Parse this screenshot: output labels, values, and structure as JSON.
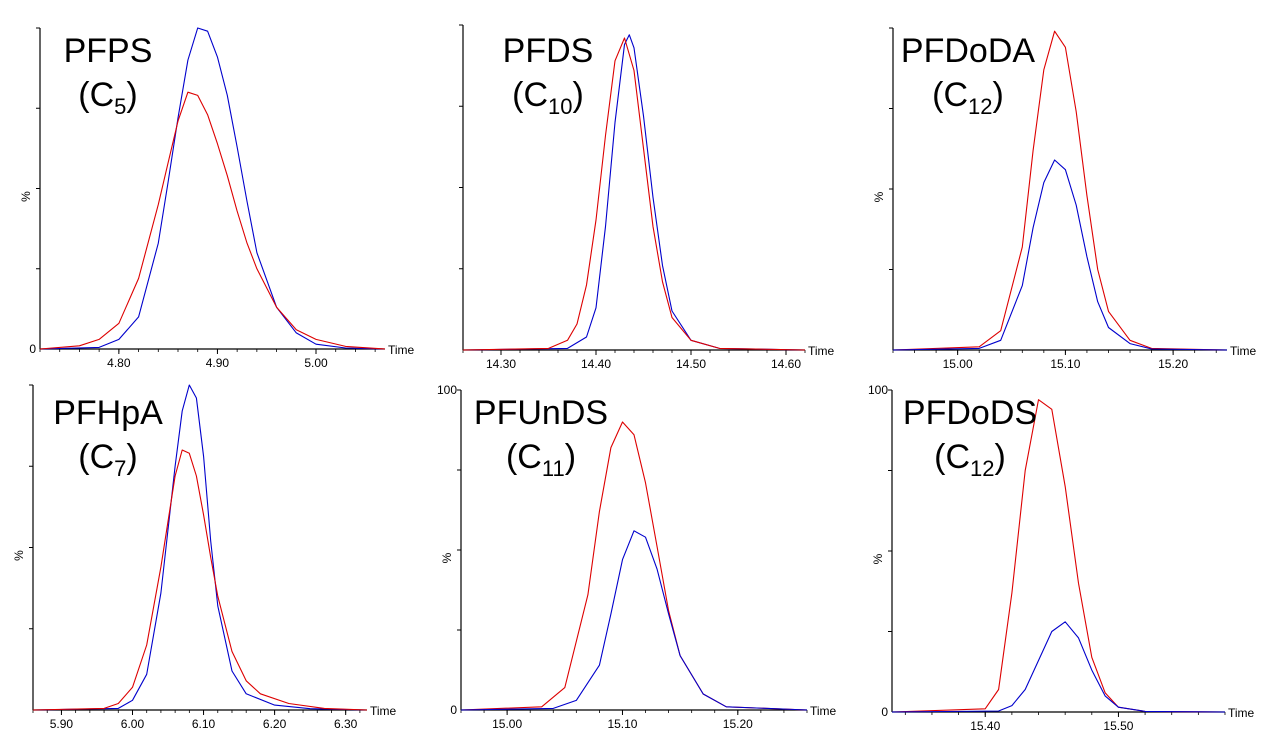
{
  "chart_data": [
    {
      "type": "line",
      "title": "PFPS",
      "carbon": "5",
      "xlabel": "Time",
      "ylabel": "%",
      "xlim": [
        4.72,
        5.07
      ],
      "ylim": [
        0,
        100
      ],
      "x_ticks": [
        "4.80",
        "4.90",
        "5.00"
      ],
      "x_tick_values": [
        4.8,
        4.9,
        5.0
      ],
      "y_tick_labels": [
        {
          "value": 0,
          "label": "0"
        }
      ],
      "series": [
        {
          "color": "#0000cc",
          "x": [
            4.72,
            4.78,
            4.8,
            4.82,
            4.84,
            4.85,
            4.86,
            4.87,
            4.88,
            4.89,
            4.9,
            4.91,
            4.92,
            4.93,
            4.94,
            4.96,
            4.98,
            5.0,
            5.03,
            5.07
          ],
          "y": [
            0,
            0.5,
            3,
            10,
            33,
            52,
            72,
            90,
            100,
            99,
            91,
            79,
            63,
            46,
            30,
            13,
            5,
            1.5,
            0.3,
            0
          ]
        },
        {
          "color": "#dd0000",
          "x": [
            4.72,
            4.76,
            4.78,
            4.8,
            4.82,
            4.84,
            4.85,
            4.86,
            4.87,
            4.88,
            4.89,
            4.9,
            4.91,
            4.92,
            4.93,
            4.94,
            4.96,
            4.98,
            5.0,
            5.03,
            5.07
          ],
          "y": [
            0,
            1,
            3,
            8,
            22,
            45,
            58,
            71,
            80,
            79,
            73,
            64,
            54,
            43,
            33,
            25,
            13,
            6,
            3,
            0.8,
            0
          ]
        }
      ]
    },
    {
      "type": "line",
      "title": "PFDS",
      "carbon": "10",
      "xlabel": "Time",
      "ylabel": "",
      "xlim": [
        14.26,
        14.62
      ],
      "ylim": [
        0,
        100
      ],
      "x_ticks": [
        "14.30",
        "14.40",
        "14.50",
        "14.60"
      ],
      "x_tick_values": [
        14.3,
        14.4,
        14.5,
        14.6
      ],
      "y_tick_labels": [],
      "series": [
        {
          "color": "#0000cc",
          "x": [
            14.26,
            14.37,
            14.39,
            14.4,
            14.41,
            14.42,
            14.43,
            14.435,
            14.44,
            14.45,
            14.46,
            14.47,
            14.48,
            14.5,
            14.53,
            14.62
          ],
          "y": [
            0,
            0.5,
            4,
            13,
            38,
            70,
            94,
            97,
            93,
            72,
            47,
            26,
            12,
            3,
            0.5,
            0
          ]
        },
        {
          "color": "#dd0000",
          "x": [
            14.26,
            14.35,
            14.37,
            14.38,
            14.39,
            14.4,
            14.41,
            14.42,
            14.43,
            14.44,
            14.45,
            14.46,
            14.47,
            14.48,
            14.5,
            14.53,
            14.62
          ],
          "y": [
            0,
            0.5,
            3,
            8,
            20,
            40,
            66,
            89,
            96,
            86,
            62,
            38,
            21,
            10,
            3,
            0.5,
            0
          ]
        }
      ]
    },
    {
      "type": "line",
      "title": "PFDoDA",
      "carbon": "12",
      "xlabel": "Time",
      "ylabel": "%",
      "xlim": [
        14.94,
        15.25
      ],
      "ylim": [
        0,
        100
      ],
      "x_ticks": [
        "15.00",
        "15.10",
        "15.20"
      ],
      "x_tick_values": [
        15.0,
        15.1,
        15.2
      ],
      "y_tick_labels": [],
      "series": [
        {
          "color": "#dd0000",
          "x": [
            14.94,
            15.02,
            15.04,
            15.06,
            15.07,
            15.08,
            15.09,
            15.1,
            15.11,
            15.12,
            15.13,
            15.14,
            15.16,
            15.18,
            15.25
          ],
          "y": [
            0,
            1,
            6,
            32,
            62,
            87,
            99,
            94,
            74,
            48,
            25,
            12,
            3,
            0.5,
            0
          ]
        },
        {
          "color": "#0000cc",
          "x": [
            14.94,
            15.02,
            15.04,
            15.06,
            15.07,
            15.08,
            15.09,
            15.1,
            15.11,
            15.12,
            15.13,
            15.14,
            15.16,
            15.18,
            15.25
          ],
          "y": [
            0,
            0.5,
            3,
            20,
            38,
            52,
            59,
            56,
            45,
            29,
            15,
            7,
            2,
            0.3,
            0
          ]
        }
      ]
    },
    {
      "type": "line",
      "title": "PFHpA",
      "carbon": "7",
      "xlabel": "Time",
      "ylabel": "%",
      "xlim": [
        5.86,
        6.33
      ],
      "ylim": [
        0,
        100
      ],
      "x_ticks": [
        "5.90",
        "6.00",
        "6.10",
        "6.20",
        "6.30"
      ],
      "x_tick_values": [
        5.9,
        6.0,
        6.1,
        6.2,
        6.3
      ],
      "y_tick_labels": [],
      "series": [
        {
          "color": "#0000cc",
          "x": [
            5.86,
            5.98,
            6.0,
            6.02,
            6.04,
            6.06,
            6.07,
            6.08,
            6.09,
            6.1,
            6.11,
            6.12,
            6.14,
            6.16,
            6.2,
            6.25,
            6.33
          ],
          "y": [
            0,
            0.5,
            3,
            11,
            36,
            75,
            92,
            100,
            96,
            78,
            52,
            32,
            12,
            5,
            1.5,
            0.4,
            0
          ]
        },
        {
          "color": "#dd0000",
          "x": [
            5.86,
            5.96,
            5.98,
            6.0,
            6.02,
            6.04,
            6.05,
            6.06,
            6.07,
            6.08,
            6.09,
            6.1,
            6.11,
            6.12,
            6.14,
            6.16,
            6.18,
            6.22,
            6.27,
            6.33
          ],
          "y": [
            0,
            0.5,
            2,
            7,
            20,
            44,
            58,
            72,
            80,
            79,
            72,
            60,
            47,
            35,
            18,
            9,
            5,
            2,
            0.5,
            0
          ]
        }
      ]
    },
    {
      "type": "line",
      "title": "PFUnDS",
      "carbon": "11",
      "xlabel": "Time",
      "ylabel": "%",
      "xlim": [
        14.96,
        15.26
      ],
      "ylim": [
        0,
        100
      ],
      "x_ticks": [
        "15.00",
        "15.10",
        "15.20"
      ],
      "x_tick_values": [
        15.0,
        15.1,
        15.2
      ],
      "y_tick_labels": [
        {
          "value": 0,
          "label": "0"
        },
        {
          "value": 100,
          "label": "100"
        }
      ],
      "series": [
        {
          "color": "#dd0000",
          "x": [
            14.96,
            15.03,
            15.05,
            15.07,
            15.08,
            15.09,
            15.1,
            15.11,
            15.12,
            15.13,
            15.14,
            15.15,
            15.17,
            15.19,
            15.26
          ],
          "y": [
            0,
            1,
            7,
            36,
            62,
            82,
            90,
            86,
            71,
            51,
            31,
            17,
            5,
            1,
            0
          ]
        },
        {
          "color": "#0000cc",
          "x": [
            14.96,
            15.04,
            15.06,
            15.08,
            15.09,
            15.1,
            15.11,
            15.12,
            15.13,
            15.14,
            15.15,
            15.17,
            15.19,
            15.26
          ],
          "y": [
            0,
            0.5,
            3,
            14,
            30,
            47,
            56,
            54,
            44,
            30,
            17,
            5,
            1,
            0
          ]
        }
      ]
    },
    {
      "type": "line",
      "title": "PFDoDS",
      "carbon": "12",
      "xlabel": "Time",
      "ylabel": "%",
      "xlim": [
        15.33,
        15.58
      ],
      "ylim": [
        0,
        100
      ],
      "x_ticks": [
        "15.40",
        "15.50"
      ],
      "x_tick_values": [
        15.4,
        15.5
      ],
      "y_tick_labels": [
        {
          "value": 0,
          "label": "0"
        },
        {
          "value": 100,
          "label": "100"
        }
      ],
      "series": [
        {
          "color": "#dd0000",
          "x": [
            15.33,
            15.4,
            15.41,
            15.42,
            15.43,
            15.44,
            15.45,
            15.46,
            15.47,
            15.48,
            15.49,
            15.5,
            15.52,
            15.58
          ],
          "y": [
            0,
            1,
            7,
            37,
            75,
            97,
            94,
            70,
            40,
            17,
            6,
            1.5,
            0.2,
            0
          ]
        },
        {
          "color": "#0000cc",
          "x": [
            15.33,
            15.41,
            15.42,
            15.43,
            15.44,
            15.45,
            15.46,
            15.47,
            15.48,
            15.49,
            15.5,
            15.52,
            15.58
          ],
          "y": [
            0,
            0.3,
            2,
            7,
            16,
            25,
            28,
            23,
            13,
            5,
            1.5,
            0.2,
            0
          ]
        }
      ]
    }
  ]
}
